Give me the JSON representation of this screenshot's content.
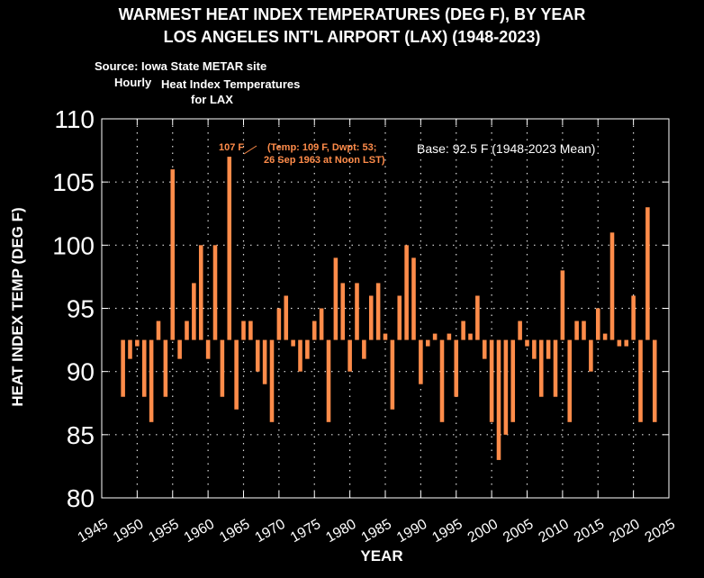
{
  "chart_data": {
    "type": "bar",
    "title": "WARMEST HEAT INDEX TEMPERATURES (DEG F), BY YEAR",
    "subtitle": "LOS ANGELES INT'L AIRPORT (LAX)  (1948-2023)",
    "xlabel": "YEAR",
    "ylabel": "HEAT INDEX TEMP (DEG F)",
    "base": 92.5,
    "base_label": "Base: 92.5 F (1948-2023 Mean)",
    "xlim": [
      1945,
      2025
    ],
    "ylim": [
      80,
      110
    ],
    "x_ticks": [
      "1945",
      "1950",
      "1955",
      "1960",
      "1965",
      "1970",
      "1975",
      "1980",
      "1985",
      "1990",
      "1995",
      "2000",
      "2005",
      "2010",
      "2015",
      "2020",
      "2025"
    ],
    "y_ticks": [
      "80",
      "85",
      "90",
      "95",
      "100",
      "105",
      "110"
    ],
    "grid": true,
    "bar_color": "#FF8C4A",
    "years": [
      1948,
      1949,
      1950,
      1951,
      1952,
      1953,
      1954,
      1955,
      1956,
      1957,
      1958,
      1959,
      1960,
      1961,
      1962,
      1963,
      1964,
      1965,
      1966,
      1967,
      1968,
      1969,
      1970,
      1971,
      1972,
      1973,
      1974,
      1975,
      1976,
      1977,
      1978,
      1979,
      1980,
      1981,
      1982,
      1983,
      1984,
      1985,
      1986,
      1987,
      1988,
      1989,
      1990,
      1991,
      1992,
      1993,
      1994,
      1995,
      1996,
      1997,
      1998,
      1999,
      2000,
      2001,
      2002,
      2003,
      2004,
      2005,
      2006,
      2007,
      2008,
      2009,
      2010,
      2011,
      2012,
      2013,
      2014,
      2015,
      2016,
      2017,
      2018,
      2019,
      2020,
      2021,
      2022,
      2023
    ],
    "values": [
      88,
      91,
      92,
      88,
      86,
      94,
      88,
      106,
      91,
      94,
      97,
      100,
      91,
      100,
      88,
      107,
      87,
      94,
      94,
      90,
      89,
      86,
      95,
      96,
      92,
      90,
      91,
      94,
      95,
      86,
      99,
      97,
      90,
      97,
      91,
      96,
      97,
      93,
      87,
      96,
      100,
      99,
      89,
      92,
      93,
      86,
      93,
      88,
      94,
      93,
      96,
      91,
      86,
      83,
      85,
      86,
      94,
      92,
      91,
      88,
      91,
      88,
      98,
      86,
      94,
      94,
      90,
      95,
      93,
      101,
      92,
      92,
      96,
      86,
      103,
      86
    ],
    "annotation": {
      "value_label": "107 F",
      "detail_line1": "(Temp: 109 F, Dwpt: 53;",
      "detail_line2": "26 Sep 1963 at Noon LST)"
    }
  },
  "notes": {
    "source": "Source: Iowa State METAR site",
    "hourly": "Hourly",
    "series_line1": "Heat Index Temperatures",
    "series_line2": "for LAX"
  }
}
